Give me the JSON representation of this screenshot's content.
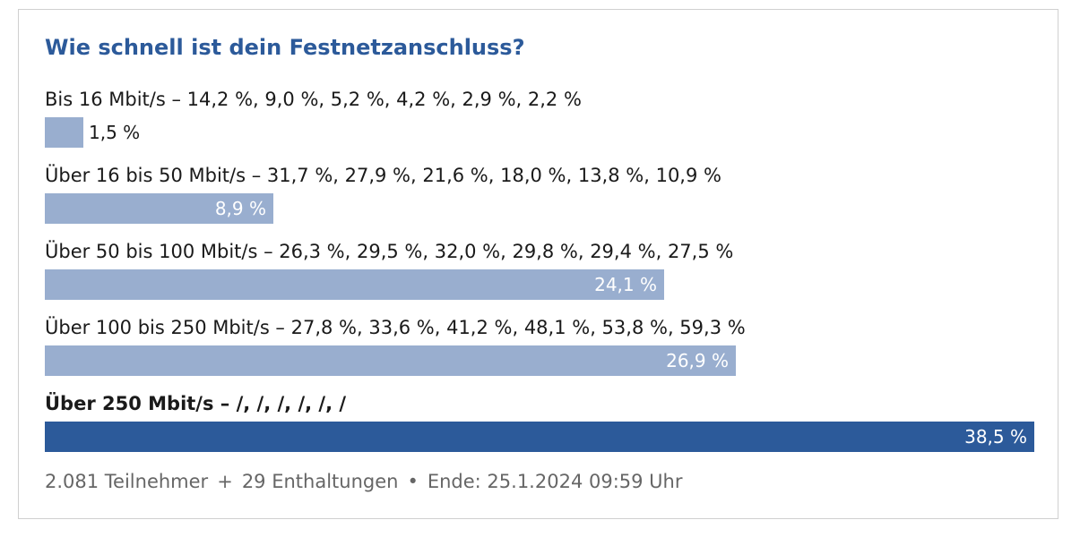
{
  "poll": {
    "title": "Wie schnell ist dein Festnetzanschluss?",
    "footer": {
      "participants": "2.081 Teilnehmer",
      "sep1": "+",
      "abstentions": "29 Enthaltungen",
      "sep2": "•",
      "end": "Ende: 25.1.2024 09:59 Uhr"
    }
  },
  "colors": {
    "title": "#2c5a9a",
    "bar": "#99aecf",
    "bar_leading": "#2c5a9a"
  },
  "chart_data": {
    "type": "bar",
    "orientation": "horizontal",
    "title": "Wie schnell ist dein Festnetzanschluss?",
    "xlim": [
      0,
      38.5
    ],
    "categories": [
      "Bis 16 Mbit/s – 14,2 %, 9,0 %, 5,2 %, 4,2 %, 2,9 %, 2,2 %",
      "Über 16 bis 50 Mbit/s – 31,7 %, 27,9 %, 21,6 %, 18,0 %, 13,8 %, 10,9 %",
      "Über 50 bis 100 Mbit/s – 26,3 %, 29,5 %, 32,0 %, 29,8 %, 29,4 %, 27,5 %",
      "Über 100 bis 250 Mbit/s – 27,8 %, 33,6 %, 41,2 %, 48,1 %, 53,8 %, 59,3 %",
      "Über 250 Mbit/s – /, /, /, /, /, /"
    ],
    "values": [
      1.5,
      8.9,
      24.1,
      26.9,
      38.5
    ],
    "value_labels": [
      "1,5 %",
      "8,9 %",
      "24,1 %",
      "26,9 %",
      "38,5 %"
    ],
    "leading_index": 4
  }
}
